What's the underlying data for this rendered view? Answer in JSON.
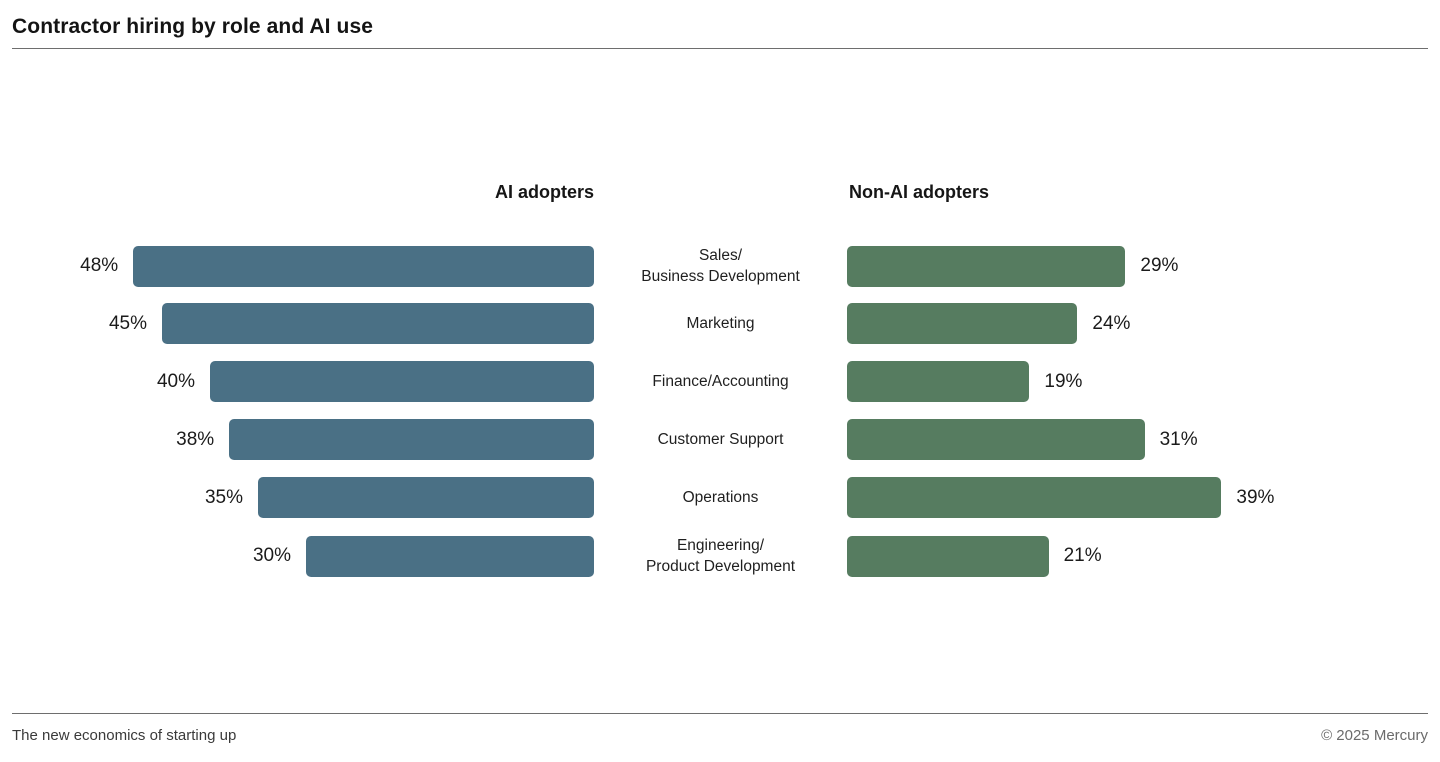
{
  "title": "Contractor hiring by role and AI use",
  "footer": {
    "left": "The new economics of starting up",
    "right": "© 2025 Mercury"
  },
  "chart_data": {
    "type": "bar",
    "orientation": "horizontal-mirrored",
    "title": "Contractor hiring by role and AI use",
    "categories": [
      "Sales/Business Development",
      "Marketing",
      "Finance/Accounting",
      "Customer Support",
      "Operations",
      "Engineering/Product Development"
    ],
    "category_lines": [
      [
        "Sales/",
        "Business Development"
      ],
      [
        "Marketing"
      ],
      [
        "Finance/Accounting"
      ],
      [
        "Customer Support"
      ],
      [
        "Operations"
      ],
      [
        "Engineering/",
        "Product Development"
      ]
    ],
    "series": [
      {
        "name": "AI adopters",
        "values": [
          48,
          45,
          40,
          38,
          35,
          30
        ],
        "color": "#4a7085"
      },
      {
        "name": "Non-AI adopters",
        "values": [
          29,
          24,
          19,
          31,
          39,
          21
        ],
        "color": "#567c60"
      }
    ],
    "value_suffix": "%",
    "xlim": [
      0,
      50
    ],
    "grid": false,
    "legend_position": "column-headers-above-bars"
  }
}
